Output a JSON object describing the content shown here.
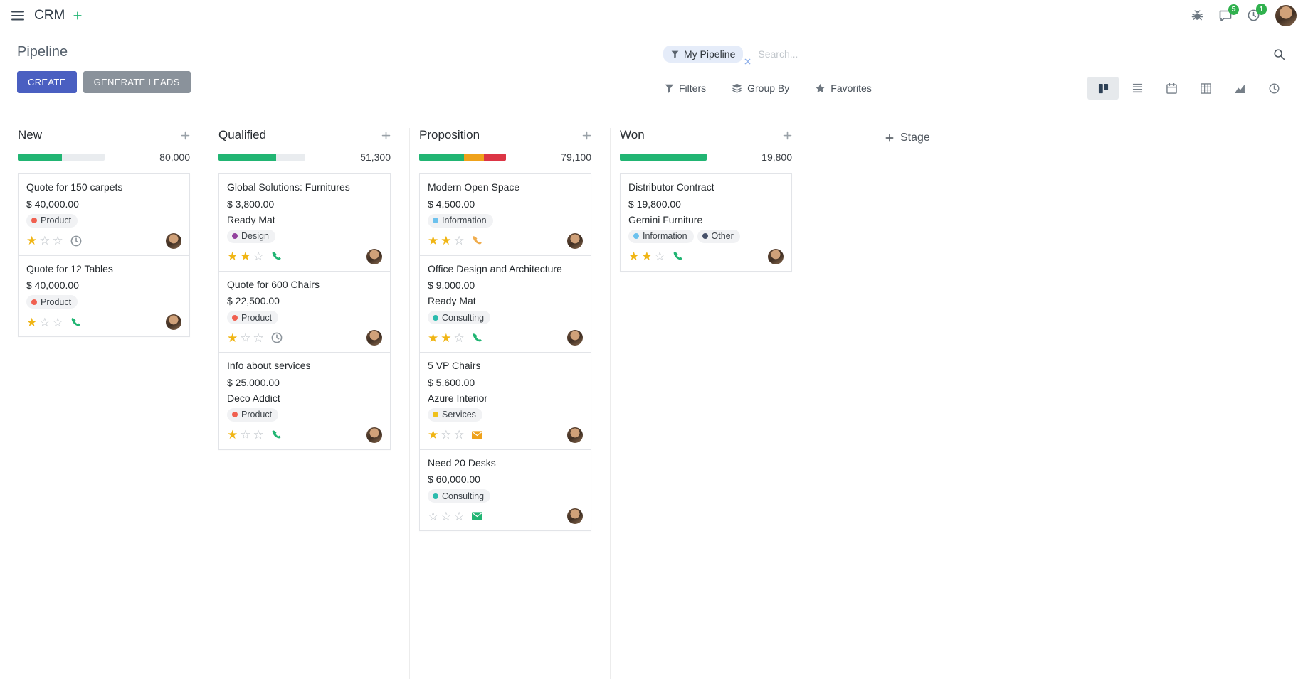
{
  "navbar": {
    "app_name": "CRM",
    "messages_badge": "5",
    "activities_badge": "1"
  },
  "control_panel": {
    "title": "Pipeline",
    "create_label": "CREATE",
    "generate_leads_label": "GENERATE LEADS",
    "search": {
      "facet_label": "My Pipeline",
      "placeholder": "Search..."
    },
    "filters_label": "Filters",
    "group_by_label": "Group By",
    "favorites_label": "Favorites"
  },
  "kanban": {
    "add_stage_label": "Stage",
    "columns": [
      {
        "name": "New",
        "counter": "80,000",
        "progress": [
          {
            "color": "#21b573",
            "pct": 51
          }
        ],
        "cards": [
          {
            "title": "Quote for 150 carpets",
            "amount": "$ 40,000.00",
            "tags": [
              {
                "label": "Product",
                "color": "#f06050"
              }
            ],
            "stars": 1,
            "activity": {
              "icon": "clock-icon",
              "color": "#8c949b"
            }
          },
          {
            "title": "Quote for 12 Tables",
            "amount": "$ 40,000.00",
            "tags": [
              {
                "label": "Product",
                "color": "#f06050"
              }
            ],
            "stars": 1,
            "activity": {
              "icon": "phone-icon",
              "color": "#21b573"
            }
          }
        ]
      },
      {
        "name": "Qualified",
        "counter": "51,300",
        "progress": [
          {
            "color": "#21b573",
            "pct": 66
          }
        ],
        "cards": [
          {
            "title": "Global Solutions: Furnitures",
            "amount": "$ 3,800.00",
            "partner": "Ready Mat",
            "tags": [
              {
                "label": "Design",
                "color": "#92419d"
              }
            ],
            "stars": 2,
            "activity": {
              "icon": "phone-icon",
              "color": "#21b573"
            }
          },
          {
            "title": "Quote for 600 Chairs",
            "amount": "$ 22,500.00",
            "tags": [
              {
                "label": "Product",
                "color": "#f06050"
              }
            ],
            "stars": 1,
            "activity": {
              "icon": "clock-icon",
              "color": "#8c949b"
            }
          },
          {
            "title": "Info about services",
            "amount": "$ 25,000.00",
            "partner": "Deco Addict",
            "tags": [
              {
                "label": "Product",
                "color": "#f06050"
              }
            ],
            "stars": 1,
            "activity": {
              "icon": "phone-icon",
              "color": "#21b573"
            }
          }
        ]
      },
      {
        "name": "Proposition",
        "counter": "79,100",
        "progress": [
          {
            "color": "#21b573",
            "pct": 52
          },
          {
            "color": "#efa21b",
            "pct": 23
          },
          {
            "color": "#dc3545",
            "pct": 25
          }
        ],
        "cards": [
          {
            "title": "Modern Open Space",
            "amount": "$ 4,500.00",
            "tags": [
              {
                "label": "Information",
                "color": "#6cc1ed"
              }
            ],
            "stars": 2,
            "activity": {
              "icon": "phone-icon",
              "color": "#f0ad4e"
            }
          },
          {
            "title": "Office Design and Architecture",
            "amount": "$ 9,000.00",
            "partner": "Ready Mat",
            "tags": [
              {
                "label": "Consulting",
                "color": "#2bbbad"
              }
            ],
            "stars": 2,
            "activity": {
              "icon": "phone-icon",
              "color": "#21b573"
            }
          },
          {
            "title": "5 VP Chairs",
            "amount": "$ 5,600.00",
            "partner": "Azure Interior",
            "tags": [
              {
                "label": "Services",
                "color": "#efc11b"
              }
            ],
            "stars": 1,
            "activity": {
              "icon": "envelope-icon",
              "color": "#efa21b"
            }
          },
          {
            "title": "Need 20 Desks",
            "amount": "$ 60,000.00",
            "tags": [
              {
                "label": "Consulting",
                "color": "#2bbbad"
              }
            ],
            "stars": 0,
            "activity": {
              "icon": "envelope-icon",
              "color": "#21b573"
            }
          }
        ]
      },
      {
        "name": "Won",
        "counter": "19,800",
        "progress": [
          {
            "color": "#21b573",
            "pct": 100
          }
        ],
        "cards": [
          {
            "title": "Distributor Contract",
            "amount": "$ 19,800.00",
            "partner": "Gemini Furniture",
            "tags": [
              {
                "label": "Information",
                "color": "#6cc1ed"
              },
              {
                "label": "Other",
                "color": "#475169"
              }
            ],
            "stars": 2,
            "activity": {
              "icon": "phone-icon",
              "color": "#21b573"
            }
          }
        ]
      }
    ]
  }
}
